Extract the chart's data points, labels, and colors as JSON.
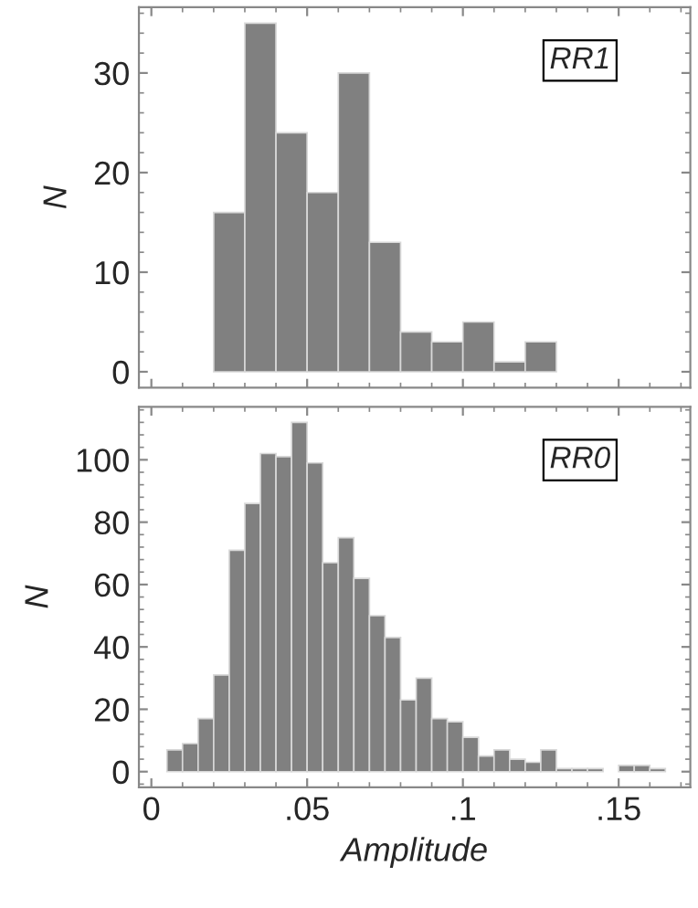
{
  "chart_data": [
    {
      "type": "histogram",
      "ylabel": "N",
      "annotations": [
        "RR1"
      ],
      "color": "#808080",
      "bins": [
        0.02,
        0.03,
        0.04,
        0.05,
        0.06,
        0.07,
        0.08,
        0.09,
        0.1,
        0.11,
        0.12,
        0.13
      ],
      "values": [
        16,
        35,
        24,
        18,
        30,
        13,
        4,
        3,
        5,
        1,
        3
      ],
      "xlim": [
        -0.004,
        0.173
      ],
      "ylim": [
        -1.6,
        36.6
      ],
      "xticks": [
        {
          "value": 0,
          "label": null
        },
        {
          "value": 0.05,
          "label": null
        },
        {
          "value": 0.1,
          "label": null
        },
        {
          "value": 0.15,
          "label": null
        }
      ],
      "yticks": [
        0,
        10,
        20,
        30
      ],
      "tick_labels": "y",
      "grid": false,
      "legend": false
    },
    {
      "type": "histogram",
      "ylabel": "N",
      "xlabel": "Amplitude",
      "annotations": [
        "RR0"
      ],
      "color": "#808080",
      "bins": [
        0.005,
        0.01,
        0.015,
        0.02,
        0.025,
        0.03,
        0.035,
        0.04,
        0.045,
        0.05,
        0.055,
        0.06,
        0.065,
        0.07,
        0.075,
        0.08,
        0.085,
        0.09,
        0.095,
        0.1,
        0.105,
        0.11,
        0.115,
        0.12,
        0.125,
        0.13,
        0.135,
        0.14,
        0.145,
        0.15,
        0.155,
        0.16,
        0.165
      ],
      "values": [
        7,
        9,
        17,
        31,
        71,
        86,
        102,
        101,
        112,
        99,
        67,
        75,
        62,
        50,
        43,
        23,
        30,
        17,
        16,
        11,
        5,
        7,
        4,
        3,
        7,
        1,
        1,
        1,
        0,
        2,
        2,
        1
      ],
      "xlim": [
        -0.004,
        0.173
      ],
      "ylim": [
        -5,
        117
      ],
      "xticks": [
        {
          "value": 0,
          "label": "0"
        },
        {
          "value": 0.05,
          "label": ".05"
        },
        {
          "value": 0.1,
          "label": ".1"
        },
        {
          "value": 0.15,
          "label": ".15"
        }
      ],
      "yticks": [
        0,
        20,
        40,
        60,
        80,
        100
      ],
      "grid": false,
      "legend": false
    }
  ]
}
